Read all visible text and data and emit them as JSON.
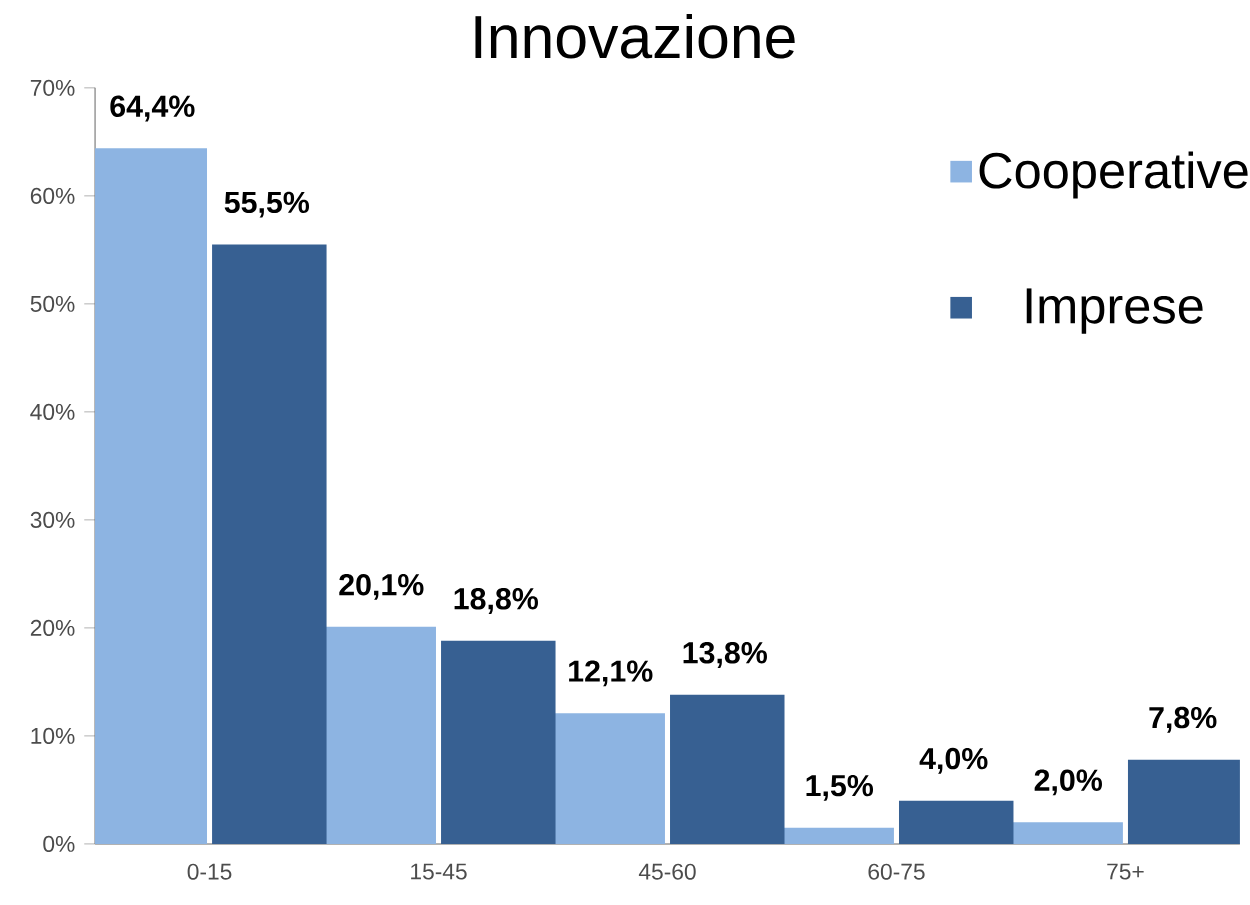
{
  "chart_data": {
    "type": "bar",
    "title": "Innovazione",
    "categories": [
      "0-15",
      "15-45",
      "45-60",
      "60-75",
      "75+"
    ],
    "series": [
      {
        "name": "Cooperative",
        "color": "#8db4e2",
        "values": [
          64.4,
          20.1,
          12.1,
          1.5,
          2.0
        ],
        "value_labels": [
          "64,4%",
          "20,1%",
          "12,1%",
          "1,5%",
          "2,0%"
        ]
      },
      {
        "name": "Imprese",
        "color": "#376092",
        "values": [
          55.5,
          18.8,
          13.8,
          4.0,
          7.8
        ],
        "value_labels": [
          "55,5%",
          "18,8%",
          "13,8%",
          "4,0%",
          "7,8%"
        ]
      }
    ],
    "ylim": [
      0,
      70
    ],
    "yticks": [
      {
        "value": 0,
        "label": "0%"
      },
      {
        "value": 10,
        "label": "10%"
      },
      {
        "value": 20,
        "label": "20%"
      },
      {
        "value": 30,
        "label": "30%"
      },
      {
        "value": 40,
        "label": "40%"
      },
      {
        "value": 50,
        "label": "50%"
      },
      {
        "value": 60,
        "label": "60%"
      },
      {
        "value": 70,
        "label": "70%"
      }
    ],
    "grid": false,
    "legend": "top right"
  }
}
